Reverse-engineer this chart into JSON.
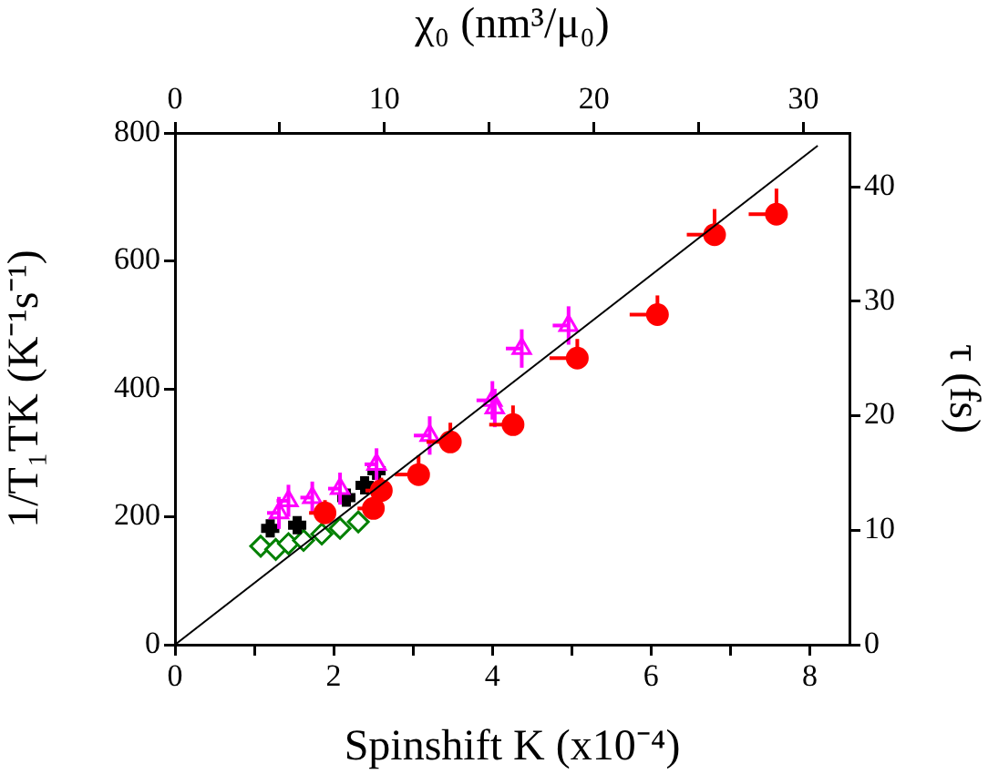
{
  "chart_data": {
    "type": "scatter",
    "xlabel": "Spinshift K (x10⁻⁴)",
    "ylabel": "1/T₁TK (K⁻¹s⁻¹)",
    "y2label": "τ (fs)",
    "x2label": "χ₀ (nm³/μ₀)",
    "xlim": [
      0,
      8.5
    ],
    "xticks": [
      0,
      {
        "value": 1,
        "label": null
      },
      2,
      {
        "value": 3,
        "label": null
      },
      4,
      {
        "value": 5,
        "label": null
      },
      6,
      {
        "value": 7,
        "label": null
      },
      8
    ],
    "ylim": [
      0,
      800
    ],
    "yticks": [
      0,
      200,
      400,
      600,
      800
    ],
    "x2lim": [
      0,
      32.2
    ],
    "x2ticks": [
      0,
      {
        "value": 5,
        "label": null
      },
      10,
      {
        "value": 15,
        "label": null
      },
      20,
      {
        "value": 25,
        "label": null
      },
      30
    ],
    "y2lim": [
      0,
      44.7
    ],
    "y2ticks": [
      0,
      10,
      20,
      30,
      40
    ],
    "grid": false,
    "legend": false,
    "series": [
      {
        "type": "line",
        "color": "#000000",
        "marker": "none",
        "line_style": "solid",
        "x": [
          0,
          8.1
        ],
        "values": [
          0,
          780
        ]
      },
      {
        "color": "#ff0000",
        "marker": "circle",
        "x": [
          7.58,
          6.8,
          6.08,
          5.07,
          4.26,
          3.47,
          3.07,
          2.5,
          2.6,
          1.89
        ],
        "values": [
          673,
          641,
          516,
          448,
          344,
          317,
          266,
          213,
          241,
          206
        ],
        "errors": [
          [
            673,
            713
          ],
          [
            641,
            681
          ],
          [
            516,
            546
          ],
          [
            448,
            478
          ],
          [
            344,
            374
          ],
          [
            317,
            347
          ],
          [
            266,
            296
          ],
          [
            213,
            233
          ],
          [
            241,
            261
          ],
          [
            206,
            226
          ]
        ],
        "xerrors": [
          [
            7.23,
            7.58
          ],
          [
            6.45,
            6.8
          ],
          [
            5.73,
            6.08
          ],
          [
            4.72,
            5.07
          ],
          [
            3.96,
            4.26
          ],
          [
            3.17,
            3.47
          ],
          [
            2.77,
            3.07
          ],
          [
            2.3,
            2.5
          ],
          [
            2.4,
            2.6
          ],
          [
            1.69,
            1.89
          ]
        ]
      },
      {
        "color": "#ff00ff",
        "marker": "triangle",
        "x": [
          4.37,
          4.96,
          4.0,
          4.03,
          3.21,
          2.54,
          2.08,
          1.73,
          1.43,
          1.31
        ],
        "values": [
          463,
          499,
          382,
          370,
          327,
          282,
          244,
          230,
          225,
          206
        ],
        "errors": [
          30,
          30,
          30,
          30,
          30,
          25,
          25,
          25,
          25,
          25
        ],
        "xerrors": [
          [
            4.17,
            4.37
          ],
          [
            4.76,
            4.96
          ],
          [
            3.8,
            4.0
          ],
          null,
          [
            3.01,
            3.21
          ],
          [
            2.39,
            2.54
          ],
          [
            1.93,
            2.08
          ],
          [
            1.58,
            1.73
          ],
          [
            1.28,
            1.43
          ],
          [
            1.16,
            1.31
          ]
        ]
      },
      {
        "color": "#000000",
        "marker": "cross",
        "x": [
          1.2,
          1.54,
          2.16,
          2.39,
          2.54
        ],
        "values": [
          182,
          187,
          230,
          249,
          272
        ]
      },
      {
        "color": "#008000",
        "marker": "diamond",
        "x": [
          1.08,
          1.27,
          1.43,
          1.62,
          1.85,
          2.08,
          2.31
        ],
        "values": [
          154,
          149,
          158,
          163,
          173,
          182,
          192
        ]
      }
    ]
  }
}
